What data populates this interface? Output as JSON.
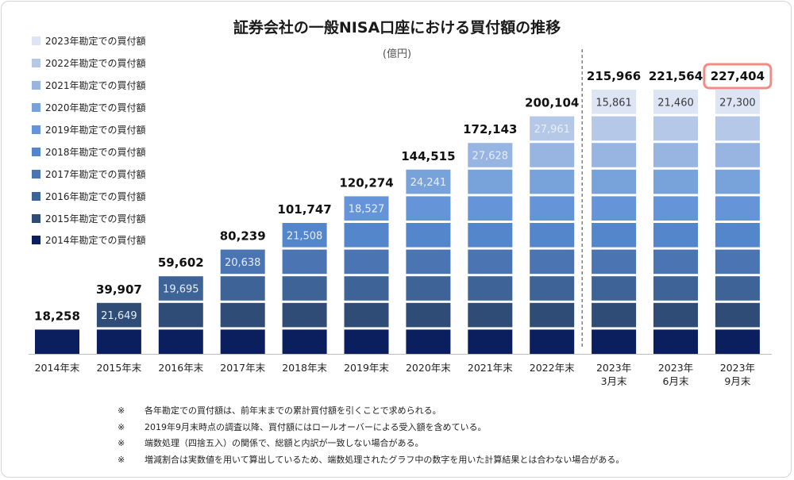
{
  "title": "証券会社の一般NISA口座における買付額の推移",
  "unit": "(億円)",
  "legend": [
    {
      "label": "2023年勘定での買付額",
      "color": "#dde5f5"
    },
    {
      "label": "2022年勘定での買付額",
      "color": "#b5c8e8"
    },
    {
      "label": "2021年勘定での買付額",
      "color": "#97b5e0"
    },
    {
      "label": "2020年勘定での買付額",
      "color": "#78a2da"
    },
    {
      "label": "2019年勘定での買付額",
      "color": "#6595d8"
    },
    {
      "label": "2018年勘定での買付額",
      "color": "#5486cc"
    },
    {
      "label": "2017年勘定での買付額",
      "color": "#4a75b2"
    },
    {
      "label": "2016年勘定での買付額",
      "color": "#3e6396"
    },
    {
      "label": "2015年勘定での買付額",
      "color": "#2f4c76"
    },
    {
      "label": "2014年勘定での買付額",
      "color": "#0b1f5e"
    }
  ],
  "chart_data": {
    "type": "bar",
    "stacked": true,
    "categories": [
      [
        "2014年末"
      ],
      [
        "2015年末"
      ],
      [
        "2016年末"
      ],
      [
        "2017年末"
      ],
      [
        "2018年末"
      ],
      [
        "2019年末"
      ],
      [
        "2020年末"
      ],
      [
        "2021年末"
      ],
      [
        "2022年末"
      ],
      [
        "2023年",
        "3月末"
      ],
      [
        "2023年",
        "6月末"
      ],
      [
        "2023年",
        "9月末"
      ]
    ],
    "totals": [
      "18,258",
      "39,907",
      "59,602",
      "80,239",
      "101,747",
      "120,274",
      "144,515",
      "172,143",
      "200,104",
      "215,966",
      "221,564",
      "227,404"
    ],
    "total_values": [
      18258,
      39907,
      59602,
      80239,
      101747,
      120274,
      144515,
      172143,
      200104,
      215966,
      221564,
      227404
    ],
    "top_segment_labels": [
      "",
      "21,649",
      "19,695",
      "20,638",
      "21,508",
      "18,527",
      "24,241",
      "27,628",
      "27,961",
      "15,861",
      "21,460",
      "27,300"
    ],
    "segment_counts": [
      1,
      2,
      3,
      4,
      5,
      6,
      7,
      8,
      9,
      10,
      10,
      10
    ],
    "ylim": [
      0,
      240000
    ],
    "highlighted_total_index": 11,
    "highlight_color": "#f28b82",
    "separator_after_index": 8
  },
  "notes": [
    {
      "mark": "※",
      "text": "各年勘定での買付額は、前年末までの累計買付額を引くことで求められる。"
    },
    {
      "mark": "※",
      "text": "2019年9月末時点の調査以降、買付額にはロールオーバーによる受入額を含めている。"
    },
    {
      "mark": "※",
      "text": "端数処理（四捨五入）の関係で、総額と内訳が一致しない場合がある。"
    },
    {
      "mark": "※",
      "text": "増減割合は実数値を用いて算出しているため、端数処理されたグラフ中の数字を用いた計算結果とは合わない場合がある。"
    }
  ]
}
